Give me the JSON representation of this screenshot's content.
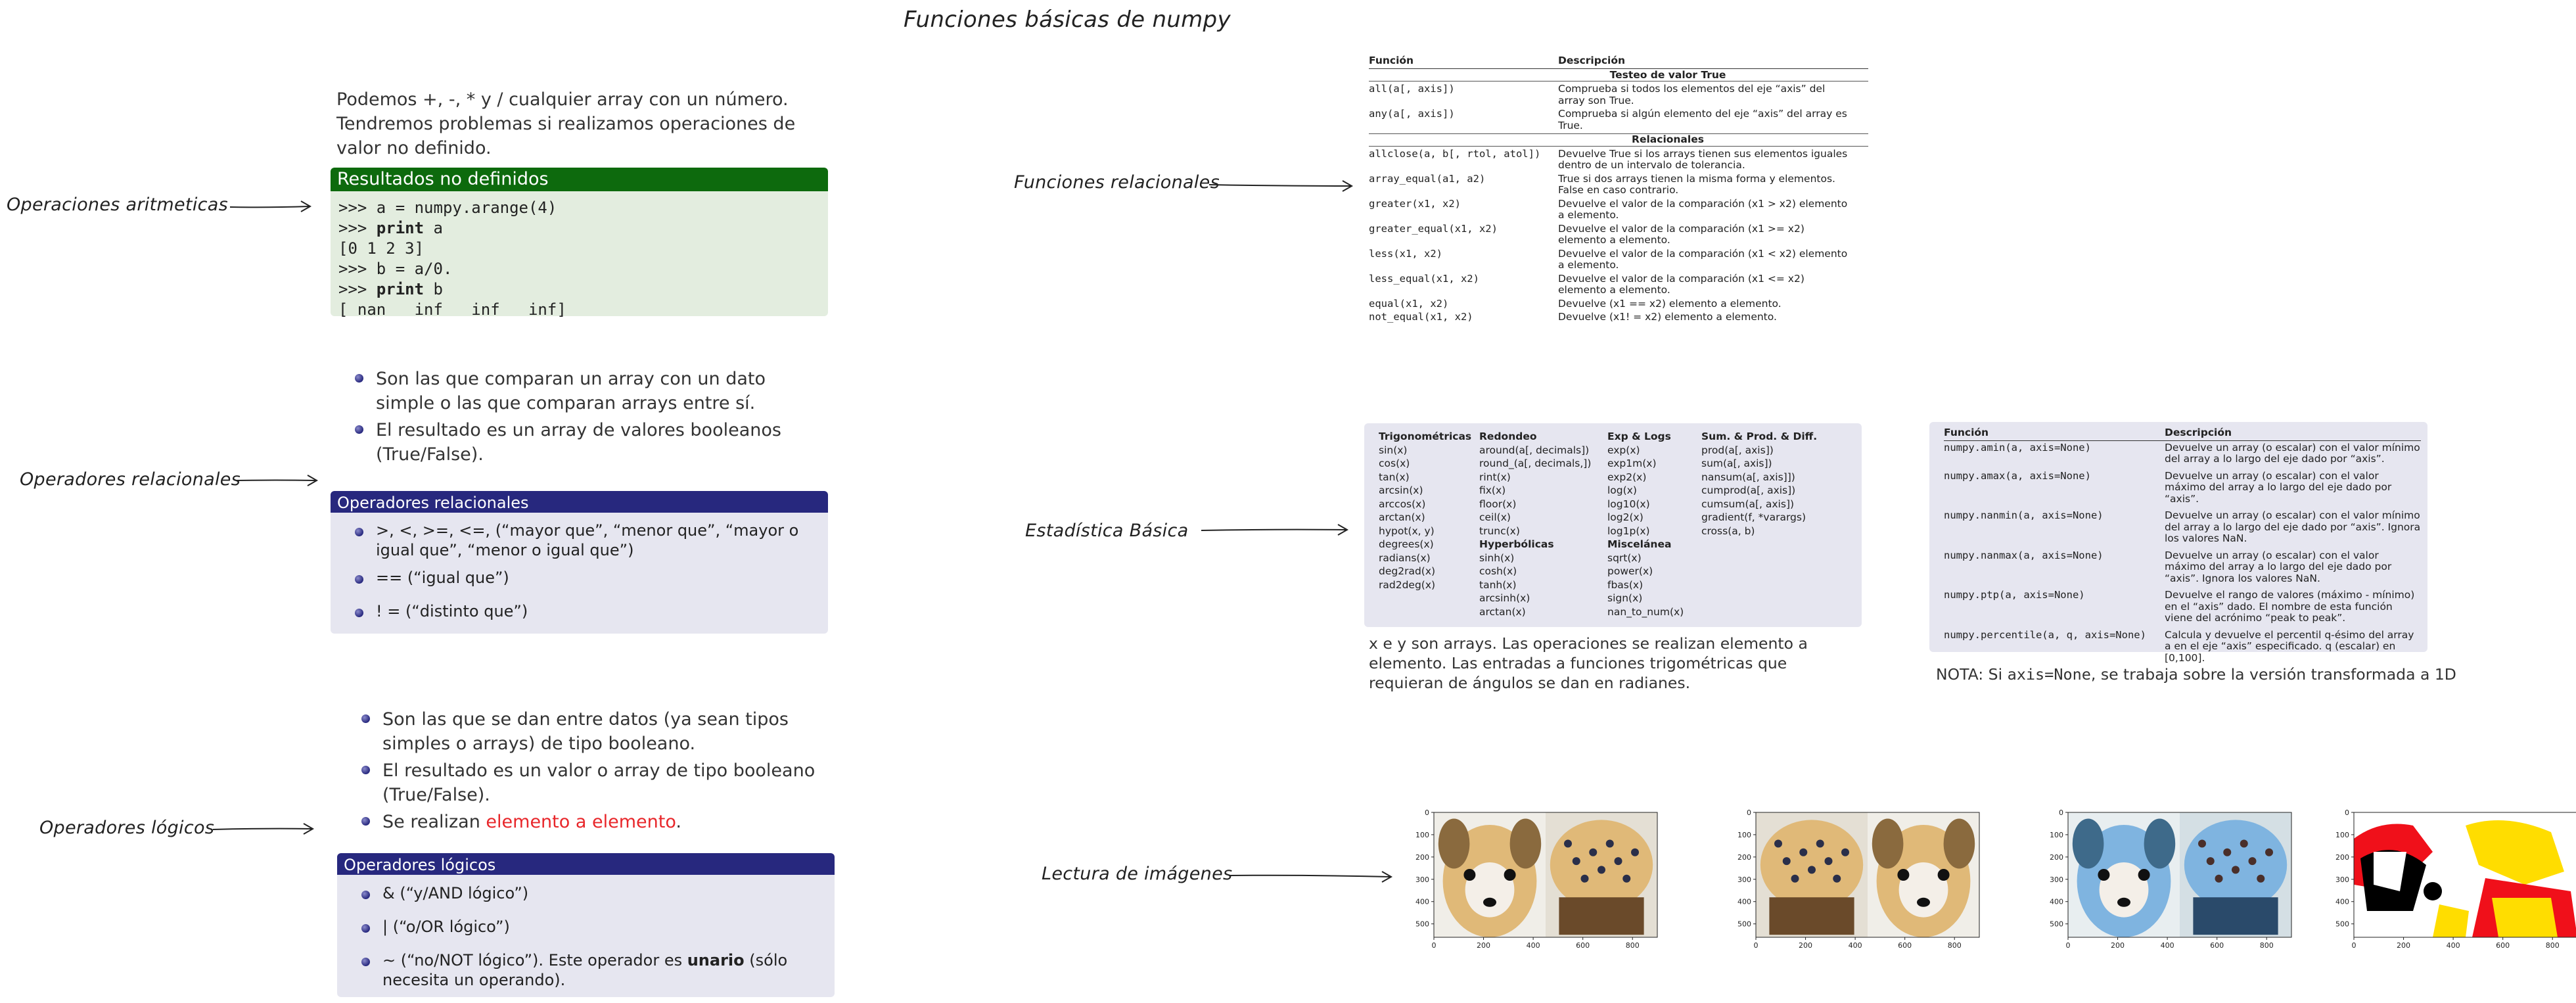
{
  "title": "Funciones básicas de numpy",
  "labels": {
    "aritmeticas": "Operaciones aritmeticas",
    "relacionales_ops": "Operadores relacionales",
    "logicos": "Operadores lógicos",
    "funciones_relacionales": "Funciones relacionales",
    "estadistica": "Estadística Básica",
    "lectura": "Lectura de imágenes"
  },
  "aritmeticas": {
    "intro": "Podemos +, -, * y / cualquier array con un número. Tendremos problemas si realizamos operaciones de valor no definido.",
    "block_title": "Resultados no definidos",
    "code": [
      {
        "prompt": ">>> ",
        "kw": "",
        "rest": "a = numpy.arange(4)"
      },
      {
        "prompt": ">>> ",
        "kw": "print",
        "rest": " a"
      },
      {
        "prompt": "",
        "kw": "",
        "rest": "[0 1 2 3]"
      },
      {
        "prompt": ">>> ",
        "kw": "",
        "rest": "b = a/0."
      },
      {
        "prompt": ">>> ",
        "kw": "print",
        "rest": " b"
      },
      {
        "prompt": "",
        "kw": "",
        "rest": "[ nan   inf   inf   inf]"
      }
    ]
  },
  "relacionales": {
    "bullets": [
      "Son las que comparan un array con un dato simple o las que comparan arrays entre sí.",
      "El resultado es un array de valores booleanos (True/False)."
    ],
    "block_title": "Operadores relacionales",
    "items": [
      ">, <, >=, <=, (“mayor que”, “menor que”, “mayor o igual que”, “menor o igual que”)",
      "== (“igual que”)",
      "! = (“distinto que”)"
    ]
  },
  "logicos": {
    "bullets": [
      "Son las que se dan entre datos (ya sean tipos simples o arrays) de tipo booleano.",
      "El resultado es un valor o array de tipo booleano (True/False)."
    ],
    "bullet3_pre": "Se realizan ",
    "bullet3_red": "elemento a elemento",
    "bullet3_post": ".",
    "block_title": "Operadores lógicos",
    "items": [
      "& (“y/AND lógico”)",
      "| (“o/OR lógico”)"
    ],
    "item3_pre": "∼ (“no/NOT lógico”). Este operador es ",
    "item3_bold": "unario",
    "item3_post": " (sólo necesita un operando)."
  },
  "func_rel": {
    "header": [
      "Función",
      "Descripción"
    ],
    "section1": "Testeo de valor True",
    "rows1": [
      [
        "all(a[, axis])",
        "Comprueba si todos los elementos del eje “axis” del array son True."
      ],
      [
        "any(a[, axis])",
        "Comprueba si algún elemento del eje “axis” del array es True."
      ]
    ],
    "section2": "Relacionales",
    "rows2": [
      [
        "allclose(a, b[, rtol, atol])",
        "Devuelve True si los arrays tienen sus elementos iguales dentro de un intervalo de tolerancia."
      ],
      [
        "array_equal(a1, a2)",
        "True si dos arrays tienen la misma forma y elementos. False en caso contrario."
      ],
      [
        "greater(x1, x2)",
        "Devuelve el valor de la comparación (x1 > x2) elemento a elemento."
      ],
      [
        "greater_equal(x1, x2)",
        "Devuelve el valor de la comparación (x1 >= x2) elemento a elemento."
      ],
      [
        "less(x1, x2)",
        "Devuelve el valor de la comparación (x1 < x2) elemento a elemento."
      ],
      [
        "less_equal(x1, x2)",
        "Devuelve el valor de la comparación (x1 <= x2) elemento a elemento."
      ],
      [
        "equal(x1, x2)",
        "Devuelve (x1 == x2) elemento a elemento."
      ],
      [
        "not_equal(x1, x2)",
        "Devuelve (x1! = x2) elemento a elemento."
      ]
    ]
  },
  "stats_funcs": {
    "columns": [
      {
        "title": "Trigonométricas",
        "items": [
          "sin(x)",
          "cos(x)",
          "tan(x)",
          "arcsin(x)",
          "arccos(x)",
          "arctan(x)",
          "hypot(x, y)",
          "degrees(x)",
          "radians(x)",
          "deg2rad(x)",
          "rad2deg(x)"
        ]
      },
      {
        "title": "Redondeo",
        "items": [
          "around(a[, decimals])",
          "round_(a[, decimals,])",
          "rint(x)",
          "fix(x)",
          "floor(x)",
          "ceil(x)",
          "trunc(x)"
        ],
        "title2": "Hyperbólicas",
        "items2": [
          "sinh(x)",
          "cosh(x)",
          "tanh(x)",
          "arcsinh(x)",
          "arctan(x)"
        ]
      },
      {
        "title": "Exp & Logs",
        "items": [
          "exp(x)",
          "exp1m(x)",
          "exp2(x)",
          "log(x)",
          "log10(x)",
          "log2(x)",
          "log1p(x)"
        ],
        "title2": "Miscelánea",
        "items2": [
          "sqrt(x)",
          "power(x)",
          "fbas(x)",
          "sign(x)",
          "nan_to_num(x)"
        ]
      },
      {
        "title": "Sum. & Prod. & Diff.",
        "items": [
          "prod(a[, axis])",
          "sum(a[, axis])",
          "nansum(a[, axis]])",
          "cumprod(a[, axis])",
          "cumsum(a[, axis])",
          "gradient(f, *varargs)",
          "cross(a, b)"
        ]
      }
    ],
    "caption": "x e y son arrays. Las operaciones se realizan elemento a elemento. Las entradas a funciones trigométricas que requieran de ángulos se dan en radianes."
  },
  "stats_table": {
    "header": [
      "Función",
      "Descripción"
    ],
    "rows": [
      [
        "numpy.amin(a, axis=None)",
        "Devuelve un array (o escalar) con el valor mínimo del array a lo largo del eje dado por “axis”."
      ],
      [
        "numpy.amax(a, axis=None)",
        "Devuelve un array (o escalar) con el valor máximo del array a lo largo del eje dado por “axis”."
      ],
      [
        "numpy.nanmin(a, axis=None)",
        "Devuelve un array (o escalar) con el valor mínimo del array a lo largo del eje dado por “axis”. Ignora los valores NaN."
      ],
      [
        "numpy.nanmax(a, axis=None)",
        "Devuelve un array (o escalar) con el valor máximo del array a lo largo del eje dado por “axis”. Ignora los valores NaN."
      ],
      [
        "numpy.ptp(a, axis=None)",
        "Devuelve el rango de valores (máximo - mínimo) en el “axis” dado. El nombre de esta función viene del acrónimo “peak to peak”."
      ],
      [
        "numpy.percentile(a, q, axis=None)",
        "Calcula y devuelve el percentil q-ésimo del array a en el eje “axis” especificado. q (escalar) en [0,100]."
      ]
    ],
    "note_pre": "NOTA: Si ",
    "note_code": "axis=None",
    "note_post": ", se trabaja sobre la versión transformada a 1D"
  },
  "images": {
    "x_ticks": [
      "0",
      "200",
      "400",
      "600",
      "800"
    ],
    "y_ticks": [
      "0",
      "100",
      "200",
      "300",
      "400",
      "500"
    ]
  }
}
